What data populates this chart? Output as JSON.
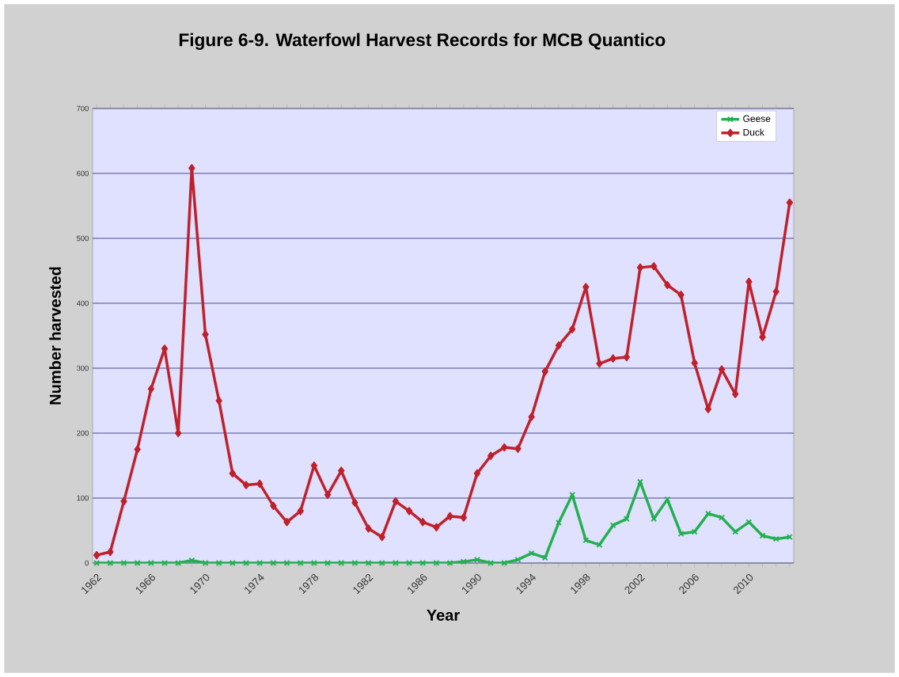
{
  "chart_data": {
    "type": "line",
    "title": "Figure 6-9.  Waterfowl Harvest Records for MCB Quantico",
    "xlabel": "Year",
    "ylabel": "Number harvested",
    "categories": [
      "1962",
      null,
      null,
      null,
      "1966",
      null,
      null,
      null,
      "1970",
      null,
      null,
      null,
      "1974",
      null,
      null,
      null,
      "1978",
      null,
      null,
      null,
      "1982",
      null,
      null,
      null,
      "1986",
      null,
      null,
      null,
      "1990",
      null,
      null,
      null,
      "1994",
      null,
      null,
      null,
      "1998",
      null,
      null,
      null,
      "2002",
      null,
      null,
      null,
      "2006",
      null,
      null,
      null,
      "2010",
      null,
      null,
      null
    ],
    "series": [
      {
        "name": "Geese",
        "color": "#22b04e",
        "marker": "cross",
        "values": [
          0,
          0,
          0,
          0,
          0,
          0,
          0,
          4,
          0,
          0,
          0,
          0,
          0,
          0,
          0,
          0,
          0,
          0,
          0,
          0,
          0,
          0,
          0,
          0,
          0,
          0,
          0,
          2,
          5,
          0,
          0,
          5,
          15,
          8,
          62,
          105,
          35,
          28,
          58,
          68,
          125,
          68,
          98,
          45,
          48,
          76,
          70,
          48,
          63,
          42,
          37,
          40
        ]
      },
      {
        "name": "Duck",
        "color": "#c0202a",
        "marker": "diamond",
        "values": [
          12,
          17,
          95,
          175,
          268,
          330,
          200,
          608,
          352,
          250,
          138,
          120,
          122,
          88,
          63,
          80,
          150,
          105,
          142,
          93,
          53,
          40,
          95,
          80,
          63,
          55,
          72,
          70,
          138,
          165,
          178,
          176,
          225,
          295,
          335,
          360,
          425,
          307,
          315,
          317,
          455,
          457,
          428,
          413,
          308,
          237,
          298,
          260,
          433,
          348,
          418,
          555
        ]
      }
    ],
    "ylim": [
      0,
      700
    ],
    "yticks": [
      0,
      100,
      200,
      300,
      400,
      500,
      600,
      700
    ],
    "grid": "y",
    "legend": "top right"
  }
}
